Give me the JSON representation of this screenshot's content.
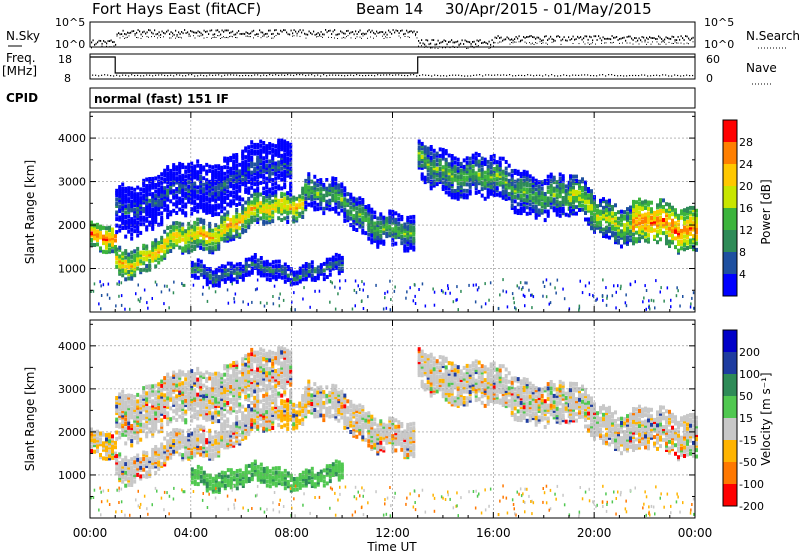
{
  "header": {
    "title": "Fort Hays East (fitACF)",
    "beam": "Beam 14",
    "date_range": "30/Apr/2015 - 01/May/2015"
  },
  "status_panels": {
    "nsky_label": "N.Sky",
    "nsky_ticks": [
      "10^5",
      "10^0"
    ],
    "nsearch_label": "N.Search",
    "nsearch_ticks": [
      "10^5",
      "10^0"
    ],
    "freq_label_1": "Freq.",
    "freq_label_2": "[MHz]",
    "freq_ticks": [
      "18",
      "8"
    ],
    "nave_label": "Nave",
    "nave_ticks": [
      "60",
      "0"
    ],
    "cpid_label": "CPID",
    "cpid_value": "normal (fast) 151 IF",
    "freq_high_segments_hours": [
      [
        0,
        1
      ],
      [
        13,
        24
      ]
    ],
    "freq_low_segment_hours": [
      1,
      13
    ]
  },
  "chart_data": [
    {
      "type": "heatmap",
      "name": "Power",
      "ylabel": "Slant Range [km]",
      "yticks": [
        1000,
        2000,
        3000,
        4000
      ],
      "ylim": [
        0,
        4600
      ],
      "colorbar_label": "Power [dB]",
      "colorbar_ticks": [
        "28",
        "24",
        "20",
        "16",
        "12",
        "8",
        "4"
      ],
      "colors": [
        "#ff0000",
        "#ff7f00",
        "#ffc800",
        "#c8e600",
        "#3cb43c",
        "#2e8b57",
        "#1e50a0",
        "#0000ff"
      ],
      "features": [
        {
          "hours": [
            0.0,
            1.0
          ],
          "center_km": [
            1700,
            1650
          ],
          "width_km": 300,
          "level": 1
        },
        {
          "hours": [
            1.0,
            8.5
          ],
          "center_km": [
            1150,
            2700
          ],
          "width_km": 350,
          "level": 2
        },
        {
          "hours": [
            8.5,
            12.9
          ],
          "center_km": [
            2900,
            1700
          ],
          "width_km": 400,
          "level": 4
        },
        {
          "hours": [
            13.0,
            19.0
          ],
          "center_km": [
            3500,
            2600
          ],
          "width_km": 500,
          "level": 4
        },
        {
          "hours": [
            19.0,
            21.5
          ],
          "center_km": [
            2700,
            2000
          ],
          "width_km": 450,
          "level": 3
        },
        {
          "hours": [
            21.5,
            24.0
          ],
          "center_km": [
            2050,
            2050
          ],
          "width_km": 500,
          "level": 1
        },
        {
          "hours": [
            4.0,
            10.0
          ],
          "center_km": [
            1000,
            1000
          ],
          "width_km": 220,
          "level": 5
        },
        {
          "hours": [
            1.0,
            8.0
          ],
          "center_km": [
            2400,
            3500
          ],
          "width_km": 600,
          "level": 6
        }
      ]
    },
    {
      "type": "heatmap",
      "name": "Velocity",
      "ylabel": "Slant Range [km]",
      "yticks": [
        1000,
        2000,
        3000,
        4000
      ],
      "ylim": [
        0,
        4600
      ],
      "colorbar_label": "Velocity [m s⁻¹]",
      "colorbar_ticks": [
        "200",
        "100",
        "50",
        "15",
        "-15",
        "-50",
        "-100",
        "-200"
      ],
      "colors": [
        "#0000c8",
        "#1e3ca0",
        "#2e8b57",
        "#50c850",
        "#c8c8c8",
        "#ffb400",
        "#ff7800",
        "#ff0000"
      ],
      "xlabel": "Time UT",
      "xticks": [
        "00:00",
        "04:00",
        "08:00",
        "12:00",
        "16:00",
        "20:00",
        "00:00"
      ],
      "xlim_hours": [
        0,
        24
      ]
    }
  ]
}
